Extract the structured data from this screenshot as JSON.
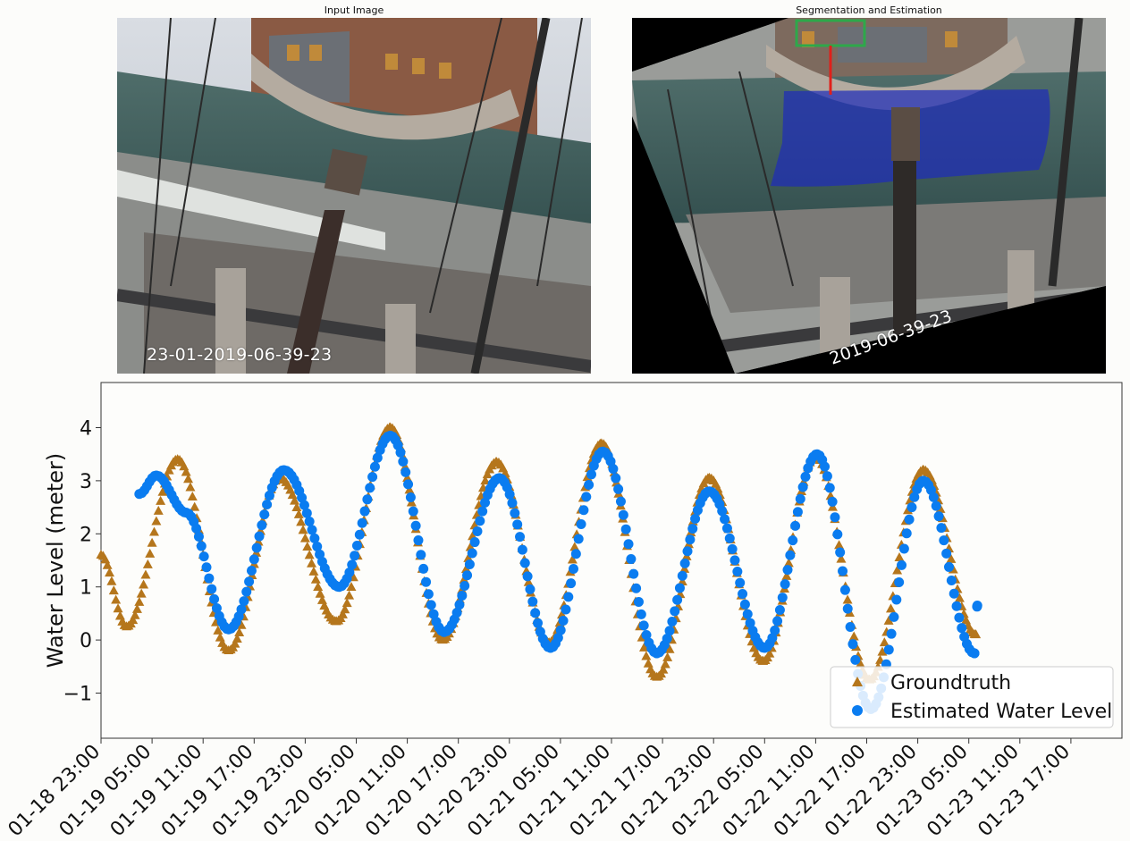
{
  "panels": {
    "left_title": "Input Image",
    "right_title": "Segmentation and Estimation",
    "left_timestamp": "23-01-2019-06-39-23",
    "right_timestamp": "2019-06-39-23"
  },
  "colors": {
    "groundtruth": "#b5761c",
    "estimated": "#0a7cf0",
    "water_mask": "#1f2db8",
    "reference_box": "#2ea84a",
    "reference_line": "#e0201a"
  },
  "chart_data": {
    "type": "scatter",
    "ylabel": "Water Level (meter)",
    "xlabel": "",
    "ylim": [
      -1.85,
      4.85
    ],
    "yticks": [
      -1,
      0,
      1,
      2,
      3,
      4
    ],
    "ytick_labels": [
      "−1",
      "0",
      "1",
      "2",
      "3",
      "4"
    ],
    "xtick_labels": [
      "01-18 23:00",
      "01-19 05:00",
      "01-19 11:00",
      "01-19 17:00",
      "01-19 23:00",
      "01-20 05:00",
      "01-20 11:00",
      "01-20 17:00",
      "01-20 23:00",
      "01-21 05:00",
      "01-21 11:00",
      "01-21 17:00",
      "01-21 23:00",
      "01-22 05:00",
      "01-22 11:00",
      "01-22 17:00",
      "01-22 23:00",
      "01-23 05:00",
      "01-23 11:00",
      "01-23 17:00"
    ],
    "xlim": [
      "01-18 23:00",
      "01-23 23:00"
    ],
    "legend_placement": "lower-right",
    "series": [
      {
        "name": "Groundtruth",
        "marker": "triangle",
        "x": [
          "01-18 23:00",
          "01-19 02:00",
          "01-19 08:00",
          "01-19 14:00",
          "01-19 20:00",
          "01-20 02:40",
          "01-20 09:00",
          "01-20 15:10",
          "01-20 21:30",
          "01-21 03:40",
          "01-21 09:50",
          "01-21 16:20",
          "01-21 22:30",
          "01-22 04:50",
          "01-22 11:00",
          "01-22 17:20",
          "01-22 23:40",
          "01-23 05:50"
        ],
        "y": [
          1.6,
          0.25,
          3.4,
          -0.2,
          3.05,
          0.35,
          4.0,
          0.0,
          3.35,
          -0.05,
          3.7,
          -0.7,
          3.05,
          -0.4,
          3.45,
          -0.75,
          3.2,
          0.1
        ]
      },
      {
        "name": "Estimated Water Level",
        "marker": "circle",
        "x": [
          "01-19 03:30",
          "01-19 05:30",
          "01-19 09:00",
          "01-19 14:00",
          "01-19 20:30",
          "01-20 03:00",
          "01-20 09:00",
          "01-20 15:20",
          "01-20 21:50",
          "01-21 03:50",
          "01-21 10:00",
          "01-21 16:20",
          "01-21 22:30",
          "01-22 05:00",
          "01-22 11:10",
          "01-22 17:30",
          "01-22 23:40",
          "01-23 05:40",
          "01-23 06:00"
        ],
        "y": [
          2.75,
          3.1,
          2.4,
          0.2,
          3.2,
          1.0,
          3.85,
          0.15,
          3.05,
          -0.15,
          3.55,
          -0.25,
          2.8,
          -0.15,
          3.5,
          -1.3,
          3.0,
          -0.25,
          0.65
        ]
      }
    ]
  }
}
